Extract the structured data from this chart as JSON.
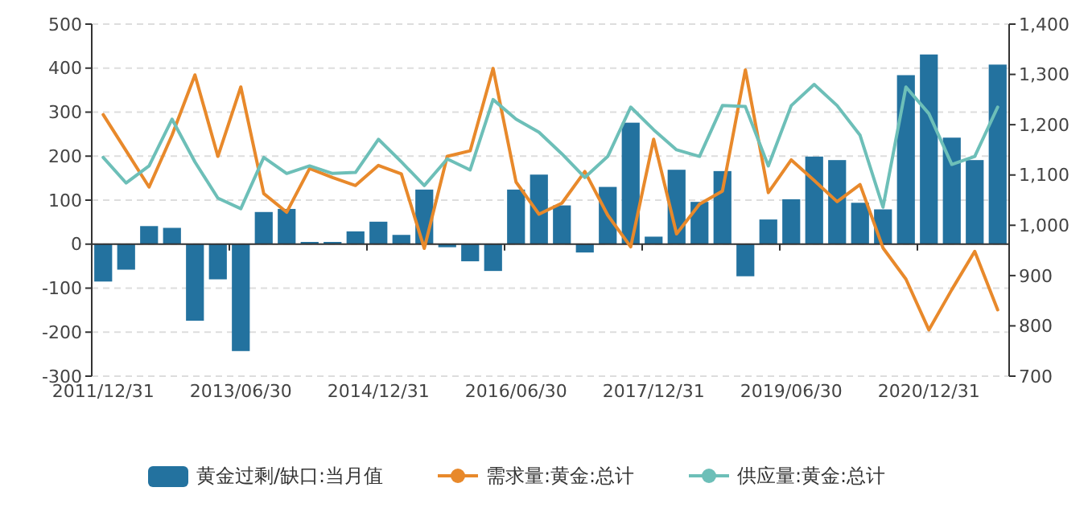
{
  "chart_data": {
    "type": "bar",
    "categories": [
      "2011/12/31",
      null,
      null,
      null,
      null,
      null,
      "2013/06/30",
      null,
      null,
      null,
      null,
      null,
      "2014/12/31",
      null,
      null,
      null,
      null,
      null,
      "2016/06/30",
      null,
      null,
      null,
      null,
      null,
      "2017/12/31",
      null,
      null,
      null,
      null,
      null,
      "2019/06/30",
      null,
      null,
      null,
      null,
      null,
      "2020/12/31",
      null,
      null,
      null
    ],
    "series": [
      {
        "name": "黄金过剩/缺口:当月值",
        "color": "#23729f",
        "values": [
          -85,
          -58,
          41,
          37,
          -174,
          -80,
          -243,
          73,
          80,
          5,
          5,
          29,
          51,
          21,
          124,
          -7,
          -39,
          -61,
          124,
          158,
          88,
          -19,
          130,
          276,
          17,
          169,
          96,
          166,
          -73,
          56,
          102,
          199,
          191,
          94,
          79,
          384,
          431,
          242,
          191,
          408
        ]
      },
      {
        "name": "需求量:黄金:总计",
        "type": "line",
        "axis": "y2",
        "color": "#e8892b",
        "values": [
          1220,
          1148,
          1076,
          1179,
          1299,
          1137,
          1275,
          1063,
          1026,
          1113,
          1095,
          1079,
          1119,
          1102,
          954,
          1137,
          1148,
          1312,
          1086,
          1022,
          1044,
          1107,
          1020,
          957,
          1171,
          983,
          1042,
          1068,
          1309,
          1065,
          1130,
          1089,
          1047,
          1081,
          955,
          893,
          792,
          872,
          948,
          832
        ]
      },
      {
        "name": "供应量:黄金:总计",
        "type": "line",
        "axis": "y2",
        "color": "#6dbfb8",
        "values": [
          1135,
          1084,
          1118,
          1211,
          1126,
          1054,
          1033,
          1135,
          1103,
          1118,
          1103,
          1105,
          1171,
          1126,
          1079,
          1132,
          1110,
          1250,
          1211,
          1185,
          1142,
          1095,
          1137,
          1235,
          1190,
          1150,
          1137,
          1238,
          1236,
          1118,
          1238,
          1280,
          1238,
          1179,
          1036,
          1275,
          1222,
          1121,
          1137,
          1235
        ]
      }
    ],
    "ylim": [
      -300,
      500
    ],
    "yticks": [
      -300,
      -200,
      -100,
      0,
      100,
      200,
      300,
      400,
      500
    ],
    "y2lim": [
      700,
      1400
    ],
    "y2ticks": [
      {
        "value": 700,
        "label": "700"
      },
      {
        "value": 800,
        "label": "800"
      },
      {
        "value": 900,
        "label": "900"
      },
      {
        "value": 1000,
        "label": "1,000"
      },
      {
        "value": 1100,
        "label": "1,100"
      },
      {
        "value": 1200,
        "label": "1,200"
      },
      {
        "value": 1300,
        "label": "1,300"
      },
      {
        "value": 1400,
        "label": "1,400"
      }
    ],
    "grid": "y",
    "legend": "bottom"
  }
}
